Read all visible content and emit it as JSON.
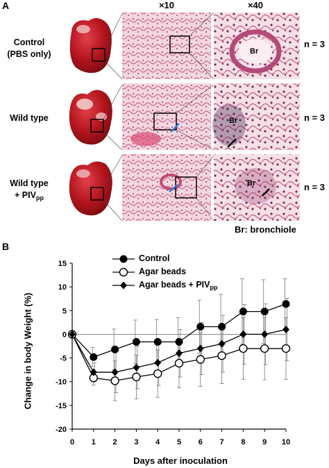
{
  "panel_a": {
    "letter": "A",
    "magnifications": [
      "×10",
      "×40"
    ],
    "rows": [
      {
        "label_lines": [
          "Control",
          "(PBS only)"
        ],
        "n": "n = 3"
      },
      {
        "label_lines": [
          "Wild type"
        ],
        "n": "n = 3"
      },
      {
        "label_lines": [
          "Wild type",
          "+ PIV"
        ],
        "label_sub": "pp",
        "n": "n = 3"
      }
    ],
    "insets": [
      "Br",
      "Br",
      "Br"
    ],
    "footnote": "Br: bronchiole",
    "colors": {
      "organ": "#b3141c",
      "tissue_bg": "#f1d3dc",
      "tissue_stain": "#c24b72"
    }
  },
  "panel_b": {
    "letter": "B",
    "chart_data": {
      "type": "line",
      "xlabel": "Days after inoculation",
      "ylabel": "Change in body Weight (%)",
      "xlim": [
        0,
        10
      ],
      "ylim": [
        -20,
        15
      ],
      "xticks": [
        0,
        1,
        2,
        3,
        4,
        5,
        6,
        7,
        8,
        9,
        10
      ],
      "yticks": [
        15,
        10,
        5,
        0,
        -5,
        -10,
        -15,
        -20
      ],
      "x": [
        0,
        1,
        2,
        3,
        4,
        5,
        6,
        7,
        8,
        9,
        10
      ],
      "reference_line_y": 0,
      "legend_position": "top-center",
      "series": [
        {
          "name": "Control",
          "marker": "circle-filled",
          "values": [
            0,
            -4.8,
            -3.2,
            -1.6,
            -1.6,
            -1.6,
            1.6,
            1.6,
            4.8,
            4.8,
            6.4
          ]
        },
        {
          "name": "Agar beads",
          "marker": "circle-open",
          "values": [
            0,
            -9.2,
            -9.8,
            -9.0,
            -8.3,
            -6.1,
            -5.3,
            -4.5,
            -3.0,
            -3.0,
            -3.0
          ]
        },
        {
          "name": "Agar beads + PIV",
          "name_sub": "pp",
          "marker": "diamond-filled",
          "values": [
            0,
            -8.0,
            -8.0,
            -7.0,
            -6.0,
            -4.0,
            -3.0,
            -2.0,
            0,
            0,
            1.0
          ]
        }
      ],
      "error_bars": [
        [
          0,
          2.0,
          4.3,
          4.6,
          4.7,
          5.1,
          5.6,
          6.8,
          6.9,
          6.7,
          5.3
        ],
        [
          0,
          1.5,
          4.2,
          4.6,
          5.0,
          5.2,
          5.7,
          5.9,
          6.5,
          6.6,
          6.5
        ],
        [
          0,
          2.0,
          4.3,
          4.5,
          4.8,
          5.0,
          5.5,
          6.0,
          6.3,
          6.4,
          6.6
        ]
      ]
    }
  }
}
